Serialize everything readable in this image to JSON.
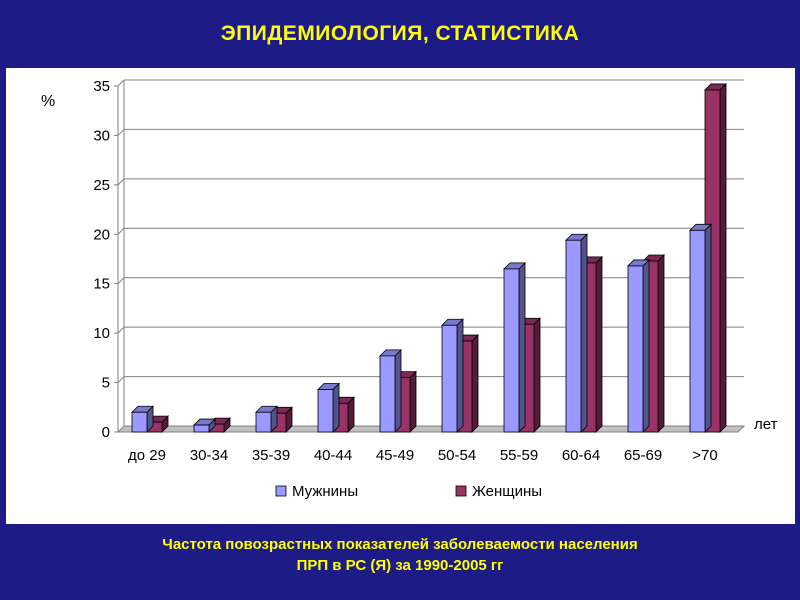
{
  "title": "ЭПИДЕМИОЛОГИЯ, СТАТИСТИКА",
  "caption": {
    "line1": "Частота повозрастных показателей заболеваемости населения",
    "line2": "ПРП в РС (Я) за 1990-2005 гг"
  },
  "colors": {
    "background": "#1d1b86",
    "title_text": "#ffff00",
    "panel": "#ffffff",
    "male_bar": "#9999ff",
    "female_bar": "#993366"
  },
  "chart_data": {
    "type": "bar",
    "ylabel": "%",
    "xlabel": "лет",
    "ylim": [
      0,
      35
    ],
    "yticks": [
      0,
      5,
      10,
      15,
      20,
      25,
      30,
      35
    ],
    "categories": [
      "до 29",
      "30-34",
      "35-39",
      "40-44",
      "45-49",
      "50-54",
      "55-59",
      "60-64",
      "65-69",
      ">70"
    ],
    "series": [
      {
        "name": "Мужнины",
        "color": "#9999ff",
        "values": [
          2.0,
          0.7,
          2.0,
          4.3,
          7.7,
          10.8,
          16.5,
          19.4,
          16.8,
          20.4
        ]
      },
      {
        "name": "Женщины",
        "color": "#993366",
        "values": [
          1.0,
          0.8,
          1.9,
          2.9,
          5.5,
          9.2,
          10.9,
          17.1,
          17.3,
          34.6
        ]
      }
    ],
    "grid": true,
    "legend_position": "bottom"
  }
}
